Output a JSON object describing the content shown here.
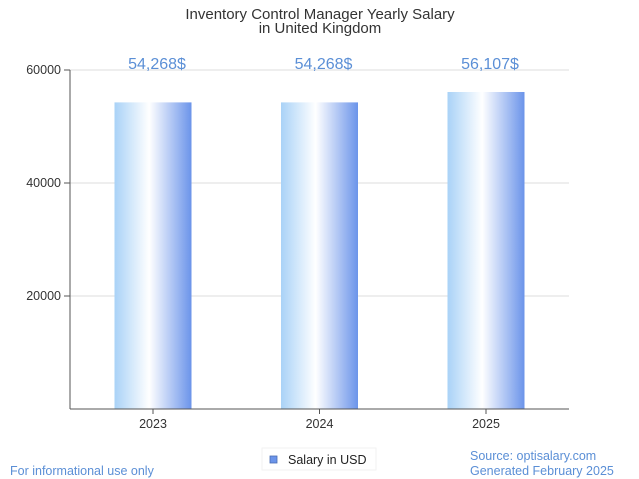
{
  "chart_data": {
    "type": "bar",
    "title_lines": [
      "Inventory Control Manager Yearly Salary",
      "in United Kingdom"
    ],
    "categories": [
      "2023",
      "2024",
      "2025"
    ],
    "series": [
      {
        "name": "Salary in USD",
        "values": [
          54268,
          54268,
          56107
        ]
      }
    ],
    "data_labels": [
      "54,268$",
      "54,268$",
      "56,107$"
    ],
    "y_ticks": [
      "20000",
      "40000",
      "60000"
    ],
    "y_tick_values": [
      20000,
      40000,
      60000
    ],
    "ylim": [
      0,
      60000
    ],
    "grid": true,
    "legend_position": "bottom-center",
    "xlabel": "",
    "ylabel": ""
  },
  "footer": {
    "note": "For informational use only",
    "source": "Source: optisalary.com",
    "generated": "Generated February 2025"
  },
  "colors": {
    "accent": "#5b8fd6",
    "axis": "#555555",
    "grid": "#dddddd",
    "bar_light": "#ffffff",
    "bar_mid": "#a9d2f7",
    "bar_dark": "#6b94ea",
    "legend_swatch": "#6b94ea"
  }
}
